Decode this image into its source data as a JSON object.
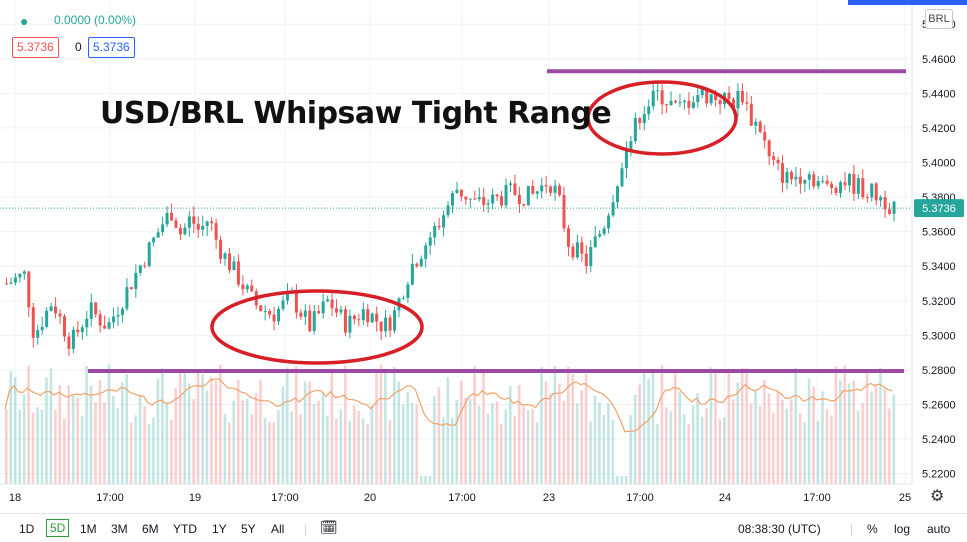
{
  "header": {
    "change_text": "0.0000 (0.00%)",
    "bid": "5.3736",
    "spread": "0",
    "ask": "5.3736",
    "currency": "BRL"
  },
  "annotation": {
    "title": "USD/BRL Whipsaw Tight Range"
  },
  "bottom_bar": {
    "ranges": [
      "1D",
      "5D",
      "1M",
      "3M",
      "6M",
      "YTD",
      "1Y",
      "5Y",
      "All"
    ],
    "active_range": "5D",
    "time": "08:38:30 (UTC)",
    "percent": "%",
    "log": "log",
    "auto": "auto",
    "compare_icon": "calendar-range-icon",
    "settings_icon": "gear-icon"
  },
  "colors": {
    "up": "#26a69a",
    "down": "#ef5350",
    "annotation_line": "#9c4aa3",
    "annotation_ellipse": "#d61f26",
    "volume_ma": "#f0a36b",
    "last_price": "#26a69a"
  },
  "chart_data": {
    "type": "candlestick",
    "symbol": "USD/BRL",
    "ylim": [
      5.214,
      5.494
    ],
    "last_price": 5.3736,
    "y_ticks": [
      "5.4800",
      "5.4600",
      "5.4400",
      "5.4200",
      "5.4000",
      "5.3800",
      "5.3600",
      "5.3400",
      "5.3200",
      "5.3000",
      "5.2800",
      "5.2600",
      "5.2400",
      "5.2200"
    ],
    "x_ticks": [
      "18",
      "17:00",
      "19",
      "17:00",
      "20",
      "17:00",
      "23",
      "17:00",
      "24",
      "17:00",
      "25"
    ],
    "resistance": 5.4528,
    "support": 5.2794,
    "price_path": [
      [
        0,
        5.33
      ],
      [
        2,
        5.335
      ],
      [
        3,
        5.3
      ],
      [
        5,
        5.32
      ],
      [
        7,
        5.295
      ],
      [
        9,
        5.315
      ],
      [
        11,
        5.305
      ],
      [
        13,
        5.325
      ],
      [
        15,
        5.345
      ],
      [
        17,
        5.365
      ],
      [
        18,
        5.372
      ],
      [
        19,
        5.358
      ],
      [
        20,
        5.368
      ],
      [
        21,
        5.36
      ],
      [
        22,
        5.368
      ],
      [
        23,
        5.352
      ],
      [
        25,
        5.335
      ],
      [
        27,
        5.318
      ],
      [
        29,
        5.312
      ],
      [
        31,
        5.322
      ],
      [
        33,
        5.305
      ],
      [
        35,
        5.32
      ],
      [
        37,
        5.306
      ],
      [
        39,
        5.315
      ],
      [
        41,
        5.305
      ],
      [
        42,
        5.31
      ],
      [
        43,
        5.325
      ],
      [
        44,
        5.34
      ],
      [
        45,
        5.348
      ],
      [
        47,
        5.365
      ],
      [
        49,
        5.385
      ],
      [
        51,
        5.376
      ],
      [
        53,
        5.378
      ],
      [
        55,
        5.383
      ],
      [
        57,
        5.38
      ],
      [
        59,
        5.39
      ],
      [
        60,
        5.38
      ],
      [
        61,
        5.355
      ],
      [
        63,
        5.342
      ],
      [
        65,
        5.365
      ],
      [
        67,
        5.4
      ],
      [
        69,
        5.43
      ],
      [
        71,
        5.44
      ],
      [
        73,
        5.43
      ],
      [
        75,
        5.44
      ],
      [
        77,
        5.438
      ],
      [
        79,
        5.435
      ],
      [
        80,
        5.44
      ],
      [
        81,
        5.425
      ],
      [
        82,
        5.42
      ],
      [
        83,
        5.4
      ],
      [
        85,
        5.39
      ],
      [
        87,
        5.395
      ],
      [
        89,
        5.385
      ],
      [
        91,
        5.39
      ],
      [
        93,
        5.385
      ],
      [
        95,
        5.38
      ],
      [
        96,
        5.376
      ],
      [
        97,
        5.374
      ]
    ]
  }
}
